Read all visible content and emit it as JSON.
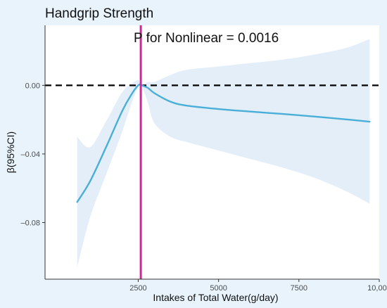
{
  "chart_data": {
    "type": "line",
    "title": "Handgrip Strength",
    "xlabel": "Intakes of Total Water(g/day)",
    "ylabel": "β(95%CI)",
    "xlim": [
      -400,
      10000
    ],
    "ylim": [
      -0.113,
      0.035
    ],
    "x_ticks": [
      2500,
      5000,
      7500,
      10000
    ],
    "x_tick_labels": [
      "2500",
      "5000",
      "7500",
      "10,000"
    ],
    "y_ticks": [
      0.0,
      -0.04,
      -0.08
    ],
    "y_tick_labels": [
      "0.00",
      "–0.04",
      "–0.08"
    ],
    "grid": false,
    "legend": "none",
    "series": [
      {
        "x": [
          600,
          1000,
          1500,
          2000,
          2300,
          2500,
          2600,
          2800,
          3000,
          3500,
          4000,
          5000,
          6000,
          7000,
          8000,
          9000,
          9700
        ],
        "y": [
          -0.068,
          -0.056,
          -0.036,
          -0.015,
          -0.005,
          0.0,
          0.0,
          -0.0015,
          -0.0045,
          -0.0095,
          -0.0118,
          -0.0138,
          -0.0153,
          -0.0167,
          -0.0182,
          -0.0199,
          -0.0212
        ],
        "lower": [
          -0.106,
          -0.077,
          -0.052,
          -0.027,
          -0.01,
          -0.001,
          0.0,
          -0.01,
          -0.022,
          -0.03,
          -0.033,
          -0.038,
          -0.043,
          -0.048,
          -0.054,
          -0.062,
          -0.069
        ],
        "upper": [
          -0.03,
          -0.036,
          -0.021,
          -0.004,
          0.001,
          0.003,
          0.0,
          0.002,
          0.002,
          0.006,
          0.009,
          0.011,
          0.013,
          0.015,
          0.018,
          0.022,
          0.027
        ]
      }
    ],
    "reference_line_y": 0.0,
    "vertical_line_x": 2580,
    "annotation": "P for Nonlinear = 0.0016",
    "colors": {
      "background": "#e8f3fc",
      "panel": "#ffffff",
      "line": "#4aafd7",
      "band": "#e3eef9",
      "vline": "#d3249a",
      "hline": "#000000",
      "axis": "#333333"
    }
  }
}
